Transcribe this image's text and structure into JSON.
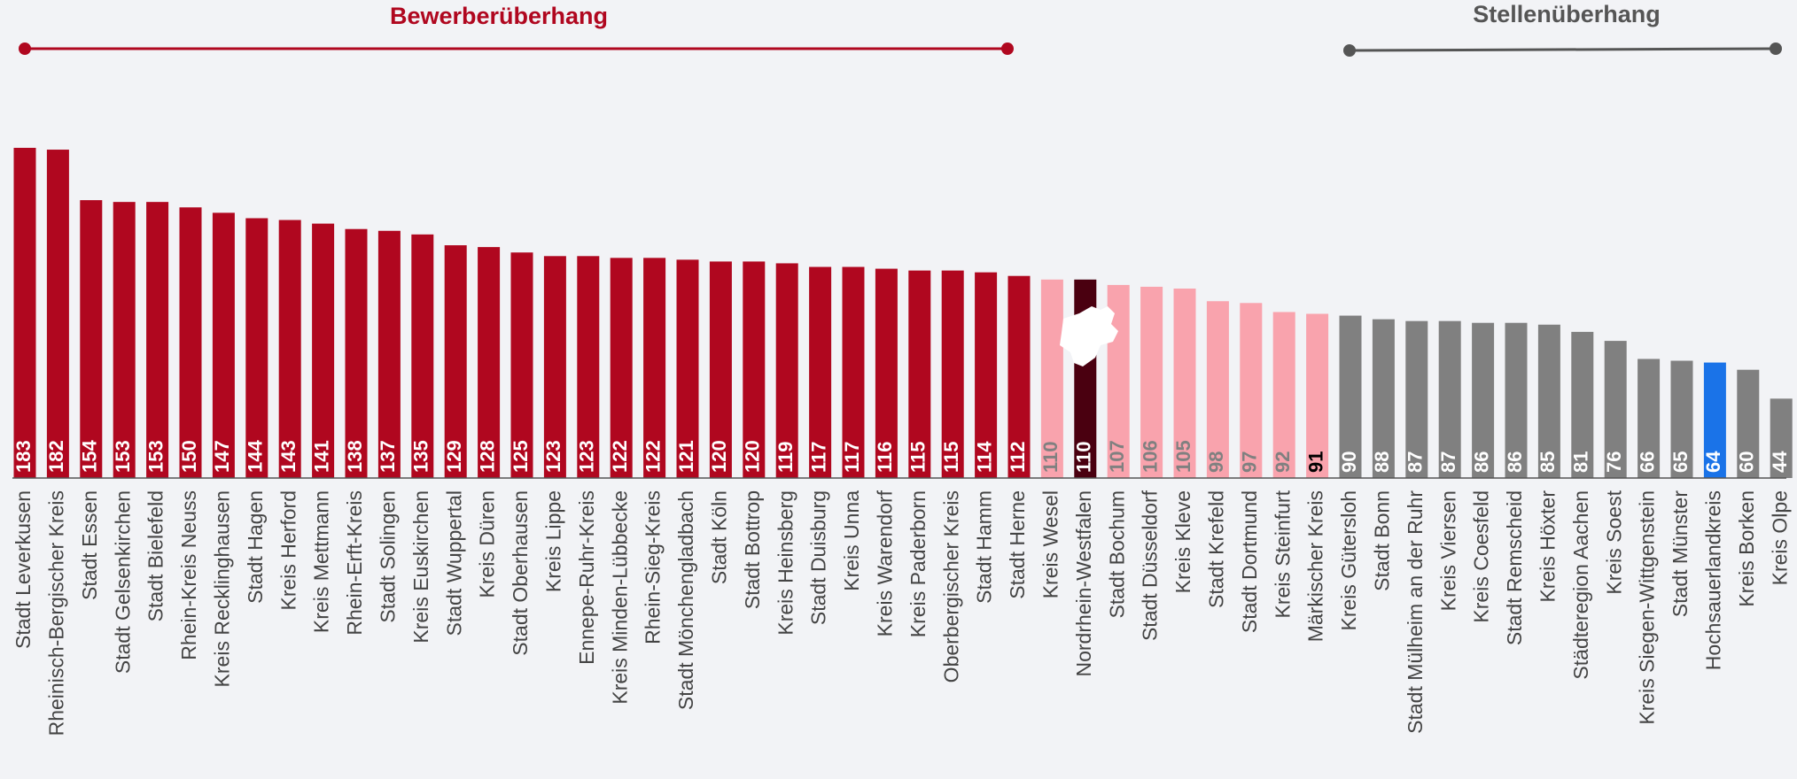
{
  "chart_data": {
    "type": "bar",
    "annotations": [
      {
        "text": "Bewerberüberhang",
        "color": "#b0071f"
      },
      {
        "text": "Stellenüberhang",
        "color": "#555555"
      }
    ],
    "categories": [
      "Stadt Leverkusen",
      "Rheinisch-Bergischer Kreis",
      "Stadt Essen",
      "Stadt Gelsenkirchen",
      "Stadt Bielefeld",
      "Rhein-Kreis Neuss",
      "Kreis Recklinghausen",
      "Stadt Hagen",
      "Kreis Herford",
      "Kreis Mettmann",
      "Rhein-Erft-Kreis",
      "Stadt Solingen",
      "Kreis Euskirchen",
      "Stadt Wuppertal",
      "Kreis Düren",
      "Stadt Oberhausen",
      "Kreis Lippe",
      "Ennepe-Ruhr-Kreis",
      "Kreis Minden-Lübbecke",
      "Rhein-Sieg-Kreis",
      "Stadt Mönchengladbach",
      "Stadt Köln",
      "Stadt Bottrop",
      "Kreis Heinsberg",
      "Stadt Duisburg",
      "Kreis Unna",
      "Kreis Warendorf",
      "Kreis Paderborn",
      "Oberbergischer Kreis",
      "Stadt Hamm",
      "Stadt Herne",
      "Kreis Wesel",
      "Nordrhein-Westfalen",
      "Stadt Bochum",
      "Stadt Düsseldorf",
      "Kreis Kleve",
      "Stadt Krefeld",
      "Stadt Dortmund",
      "Kreis Steinfurt",
      "Märkischer Kreis",
      "Kreis Gütersloh",
      "Stadt Bonn",
      "Stadt Mülheim an der Ruhr",
      "Kreis Viersen",
      "Kreis Coesfeld",
      "Stadt Remscheid",
      "Kreis Höxter",
      "Städteregion Aachen",
      "Kreis Soest",
      "Kreis Siegen-Wittgenstein",
      "Stadt Münster",
      "Hochsauerlandkreis",
      "Kreis Borken",
      "Kreis Olpe"
    ],
    "values": [
      183,
      182,
      154,
      153,
      153,
      150,
      147,
      144,
      143,
      141,
      138,
      137,
      135,
      129,
      128,
      125,
      123,
      123,
      122,
      122,
      121,
      120,
      120,
      119,
      117,
      117,
      116,
      115,
      115,
      114,
      112,
      110,
      110,
      107,
      106,
      105,
      98,
      97,
      92,
      91,
      90,
      88,
      87,
      87,
      86,
      86,
      85,
      81,
      76,
      66,
      65,
      64,
      60,
      44
    ],
    "colors": [
      "#b0071f",
      "#b0071f",
      "#b0071f",
      "#b0071f",
      "#b0071f",
      "#b0071f",
      "#b0071f",
      "#b0071f",
      "#b0071f",
      "#b0071f",
      "#b0071f",
      "#b0071f",
      "#b0071f",
      "#b0071f",
      "#b0071f",
      "#b0071f",
      "#b0071f",
      "#b0071f",
      "#b0071f",
      "#b0071f",
      "#b0071f",
      "#b0071f",
      "#b0071f",
      "#b0071f",
      "#b0071f",
      "#b0071f",
      "#b0071f",
      "#b0071f",
      "#b0071f",
      "#b0071f",
      "#b0071f",
      "#f9a3ad",
      "#4a0010",
      "#f9a3ad",
      "#f9a3ad",
      "#f9a3ad",
      "#f9a3ad",
      "#f9a3ad",
      "#f9a3ad",
      "#f9a3ad",
      "#808080",
      "#808080",
      "#808080",
      "#808080",
      "#808080",
      "#808080",
      "#808080",
      "#808080",
      "#808080",
      "#808080",
      "#808080",
      "#1a73e8",
      "#808080",
      "#808080"
    ],
    "label_colors": [
      "#ffffff",
      "#ffffff",
      "#ffffff",
      "#ffffff",
      "#ffffff",
      "#ffffff",
      "#ffffff",
      "#ffffff",
      "#ffffff",
      "#ffffff",
      "#ffffff",
      "#ffffff",
      "#ffffff",
      "#ffffff",
      "#ffffff",
      "#ffffff",
      "#ffffff",
      "#ffffff",
      "#ffffff",
      "#ffffff",
      "#ffffff",
      "#ffffff",
      "#ffffff",
      "#ffffff",
      "#ffffff",
      "#ffffff",
      "#ffffff",
      "#ffffff",
      "#ffffff",
      "#ffffff",
      "#ffffff",
      "#808080",
      "#ffffff",
      "#808080",
      "#808080",
      "#808080",
      "#808080",
      "#808080",
      "#808080",
      "#000000",
      "#ffffff",
      "#ffffff",
      "#ffffff",
      "#ffffff",
      "#ffffff",
      "#ffffff",
      "#ffffff",
      "#ffffff",
      "#ffffff",
      "#ffffff",
      "#ffffff",
      "#ffffff",
      "#ffffff",
      "#ffffff"
    ]
  }
}
